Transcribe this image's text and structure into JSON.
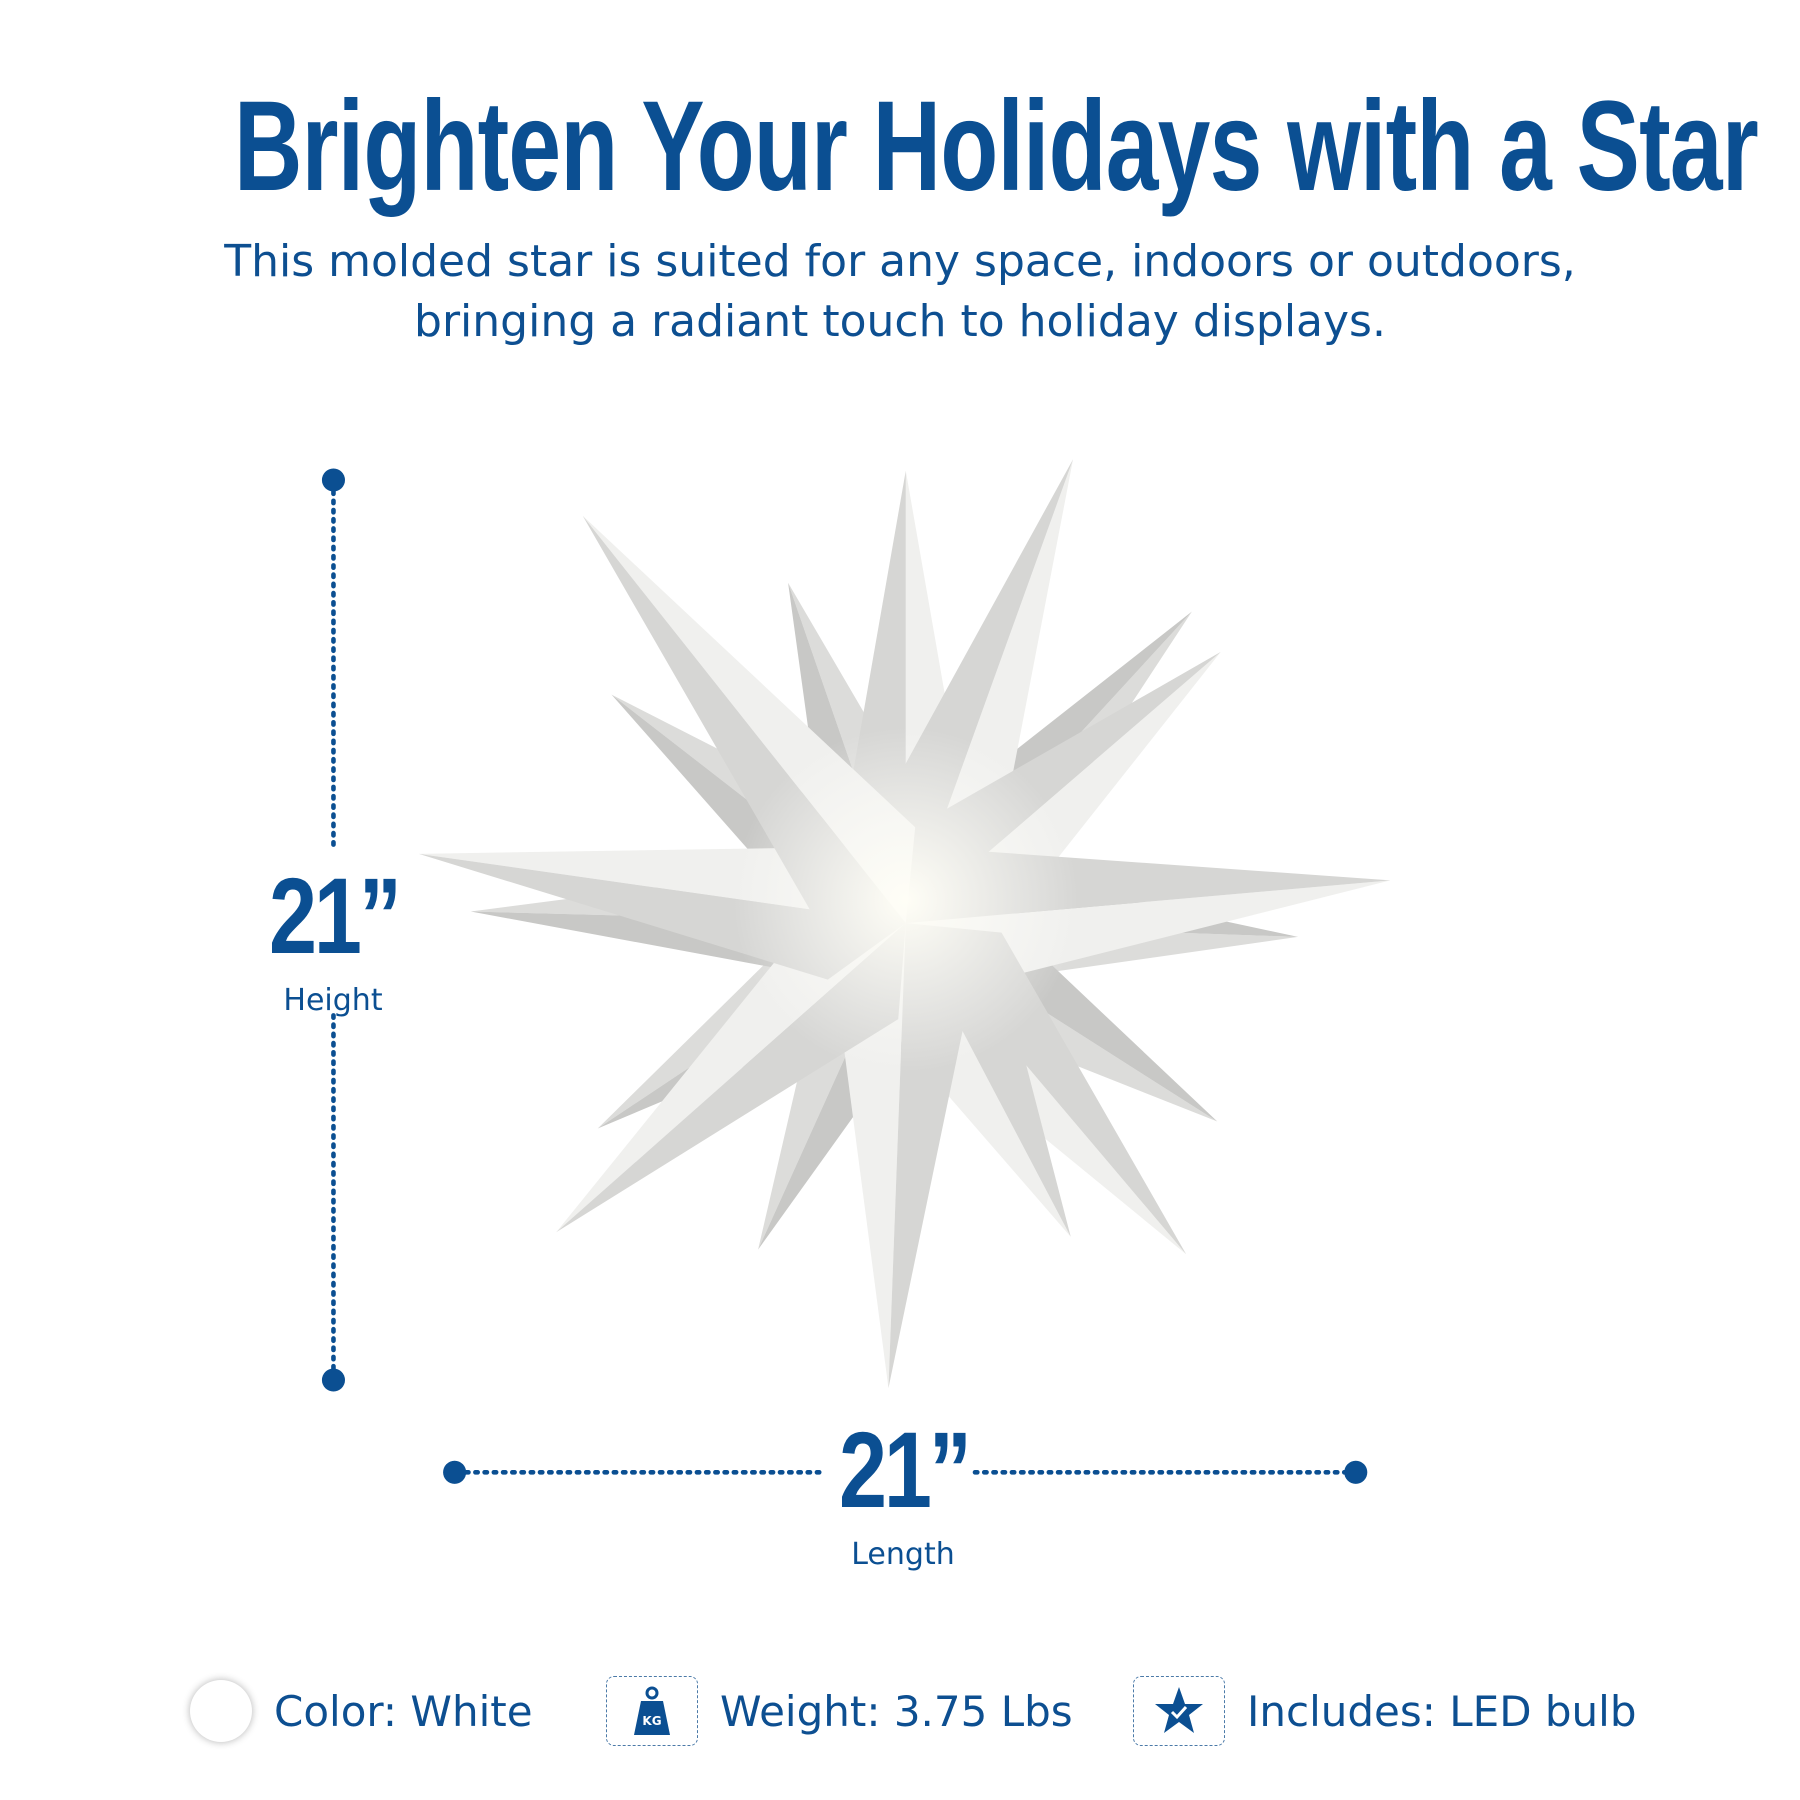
{
  "header": {
    "title": "Brighten Your Holidays with a Star",
    "subtitle_lines": [
      "This molded star is suited for any space, indoors or outdoors,",
      "bringing a radiant touch to holiday displays."
    ]
  },
  "dimensions": {
    "height": {
      "value": "21”",
      "label": "Height"
    },
    "length": {
      "value": "21”",
      "label": "Length"
    }
  },
  "features": [
    {
      "icon": "white-color-swatch",
      "text": "Color: White"
    },
    {
      "icon": "kg-weight-icon",
      "icon_text": "KG",
      "text": "Weight: 3.75 Lbs"
    },
    {
      "icon": "star-check-icon",
      "text": "Includes: LED bulb"
    }
  ],
  "colors": {
    "brand_blue": "#0b4f92",
    "star_white": "#f2f2f0"
  }
}
